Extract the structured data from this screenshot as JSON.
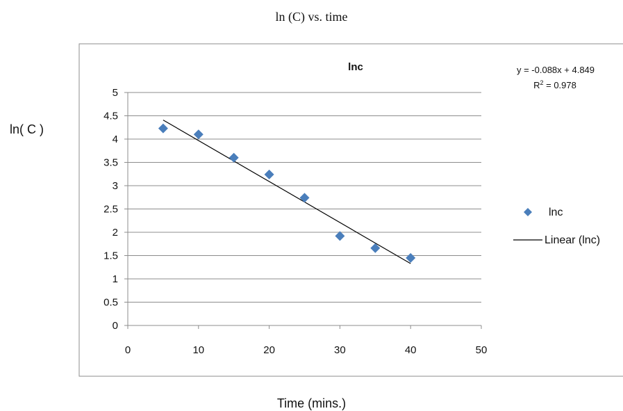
{
  "page_title": "ln (C) vs. time",
  "outer_ylabel": "ln( C )",
  "outer_xlabel": "Time (mins.)",
  "chart_data": {
    "type": "scatter",
    "title": "lnc",
    "xlabel": "",
    "ylabel": "",
    "xlim": [
      0,
      50
    ],
    "ylim": [
      0,
      5
    ],
    "x_ticks": [
      "0",
      "10",
      "20",
      "30",
      "40",
      "50"
    ],
    "y_ticks": [
      "0",
      "0.5",
      "1",
      "1.5",
      "2",
      "2.5",
      "3",
      "3.5",
      "4",
      "4.5",
      "5"
    ],
    "grid": "horizontal",
    "legend_position": "right",
    "series": [
      {
        "name": "lnc",
        "color": "#4a7ebb",
        "marker": "diamond",
        "x": [
          5,
          10,
          15,
          20,
          25,
          30,
          35,
          40
        ],
        "y": [
          4.23,
          4.1,
          3.6,
          3.24,
          2.74,
          1.92,
          1.66,
          1.45
        ]
      }
    ],
    "trendline": {
      "name": "Linear (lnc)",
      "color": "#000000",
      "slope": -0.088,
      "intercept": 4.849,
      "x_range": [
        5,
        40
      ],
      "equation": "y = -0.088x + 4.849",
      "r_squared_label": "R",
      "r_squared_value": " = 0.978"
    }
  }
}
